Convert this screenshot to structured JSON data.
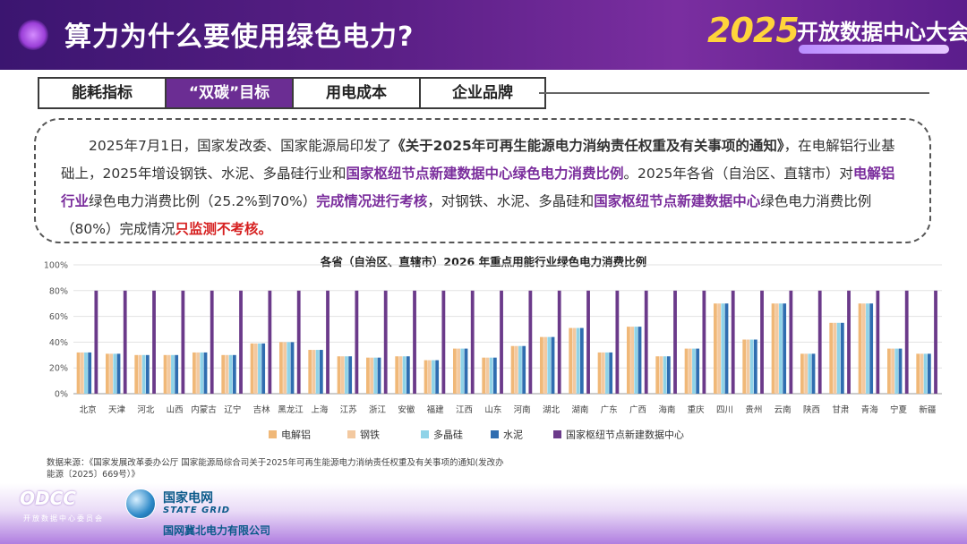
{
  "header": {
    "title": "算力为什么要使用绿色电力?",
    "logo_year": "2025",
    "logo_name": "开放数据中心大会"
  },
  "tabs": [
    {
      "label": "能耗指标",
      "active": false
    },
    {
      "label": "“双碳”目标",
      "active": true
    },
    {
      "label": "用电成本",
      "active": false
    },
    {
      "label": "企业品牌",
      "active": false
    }
  ],
  "notice": {
    "t1": "2025年7月1日，国家发改委、国家能源局印发了",
    "t2": "《关于2025年可再生能源电力消纳责任权重及有关事项的通知》",
    "t3": "，在电解铝行业基础上，2025年增设钢铁、水泥、多晶硅行业和",
    "t4": "国家枢纽节点新建数据中心绿色电力消费比例",
    "t5": "。2025年各省（自治区、直辖市）对",
    "t6": "电解铝行业",
    "t7": "绿色电力消费比例（25.2%到70%）",
    "t8": "完成情况进行考核",
    "t9": "，对钢铁、水泥、多晶硅和",
    "t10": "国家枢纽节点新建数据中心",
    "t11": "绿色电力消费比例（80%）完成情况",
    "t12": "只监测不考核。"
  },
  "source": "数据来源：《国家发展改革委办公厅 国家能源局综合司关于2025年可再生能源电力消纳责任权重及有关事项的通知(发改办能源〔2025〕669号）》",
  "footer": {
    "odcc": "ODCC",
    "odcc_sub": "开放数据中心委员会",
    "sg_cn": "国家电网",
    "sg_en": "STATE GRID",
    "sg_co": "国网冀北电力有限公司"
  },
  "chart_data": {
    "type": "bar",
    "title": "各省（自治区、直辖市）2026 年重点用能行业绿色电力消费比例",
    "ylim": [
      0,
      100
    ],
    "yticks": [
      "0%",
      "20%",
      "40%",
      "60%",
      "80%",
      "100%"
    ],
    "grid": true,
    "legend_position": "bottom",
    "categories": [
      "北京",
      "天津",
      "河北",
      "山西",
      "内蒙古",
      "辽宁",
      "吉林",
      "黑龙江",
      "上海",
      "江苏",
      "浙江",
      "安徽",
      "福建",
      "江西",
      "山东",
      "河南",
      "湖北",
      "湖南",
      "广东",
      "广西",
      "海南",
      "重庆",
      "四川",
      "贵州",
      "云南",
      "陕西",
      "甘肃",
      "青海",
      "宁夏",
      "新疆"
    ],
    "series": [
      {
        "name": "电解铝",
        "color": "#f0b878",
        "values": [
          32,
          31,
          30,
          30,
          32,
          30,
          39,
          40,
          34,
          29,
          28,
          29,
          26,
          35,
          28,
          37,
          44,
          51,
          32,
          52,
          29,
          35,
          70,
          42,
          70,
          31,
          55,
          70,
          35,
          31
        ]
      },
      {
        "name": "钢铁",
        "color": "#f3c9a0",
        "values": [
          32,
          31,
          30,
          30,
          32,
          30,
          39,
          40,
          34,
          29,
          28,
          29,
          26,
          35,
          28,
          37,
          44,
          51,
          32,
          52,
          29,
          35,
          70,
          42,
          70,
          31,
          55,
          70,
          35,
          31
        ]
      },
      {
        "name": "多晶硅",
        "color": "#8fd3e8",
        "values": [
          32,
          31,
          30,
          30,
          32,
          30,
          39,
          40,
          34,
          29,
          28,
          29,
          26,
          35,
          28,
          37,
          44,
          51,
          32,
          52,
          29,
          35,
          70,
          42,
          70,
          31,
          55,
          70,
          35,
          31
        ]
      },
      {
        "name": "水泥",
        "color": "#2f6db0",
        "values": [
          32,
          31,
          30,
          30,
          32,
          30,
          39,
          40,
          34,
          29,
          28,
          29,
          26,
          35,
          28,
          37,
          44,
          51,
          32,
          52,
          29,
          35,
          70,
          42,
          70,
          31,
          55,
          70,
          35,
          31
        ]
      },
      {
        "name": "国家枢纽节点新建数据中心",
        "color": "#6b3a8a",
        "values": [
          80,
          80,
          80,
          80,
          80,
          80,
          80,
          80,
          80,
          80,
          80,
          80,
          80,
          80,
          80,
          80,
          80,
          80,
          80,
          80,
          80,
          80,
          80,
          80,
          80,
          80,
          80,
          80,
          80,
          80
        ]
      }
    ]
  }
}
